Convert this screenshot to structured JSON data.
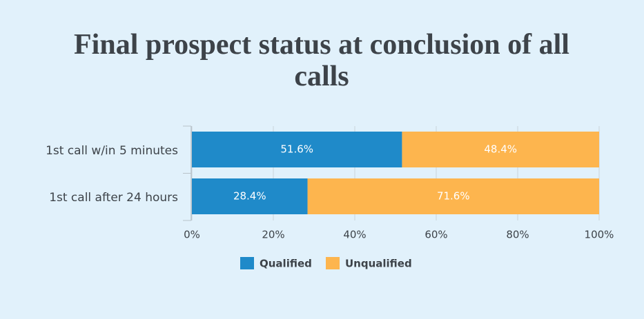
{
  "chart_data": {
    "type": "stacked_bar_horizontal",
    "title": "Final prospect status at conclusion of all calls",
    "categories": [
      "1st call w/in 5 minutes",
      "1st call after 24 hours"
    ],
    "series": [
      {
        "name": "Qualified",
        "color": "#1f8ac9",
        "values": [
          51.6,
          28.4
        ],
        "value_labels": [
          "51.6%",
          "28.4%"
        ]
      },
      {
        "name": "Unqualified",
        "color": "#fdb54e",
        "values": [
          48.4,
          71.6
        ],
        "value_labels": [
          "48.4%",
          "71.6%"
        ]
      }
    ],
    "xlim": [
      0,
      100
    ],
    "xticks": [
      {
        "value": 0,
        "label": "0%"
      },
      {
        "value": 20,
        "label": "20%"
      },
      {
        "value": 40,
        "label": "40%"
      },
      {
        "value": 60,
        "label": "60%"
      },
      {
        "value": 80,
        "label": "80%"
      },
      {
        "value": 100,
        "label": "100%"
      }
    ],
    "grid": true,
    "legend": "bottom"
  }
}
